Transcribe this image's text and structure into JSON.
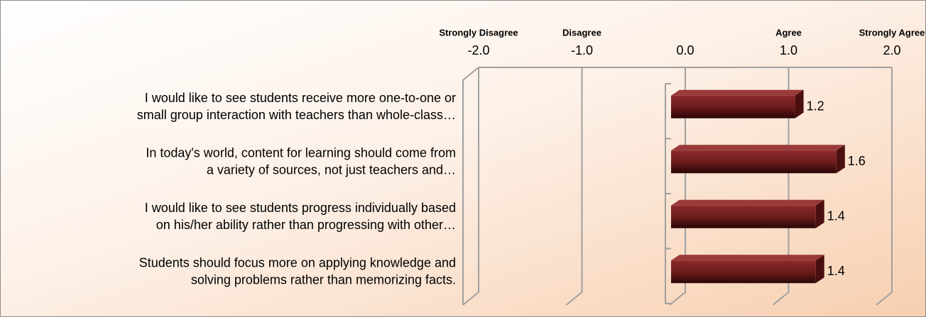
{
  "chart_data": {
    "type": "bar",
    "orientation": "horizontal",
    "categories": [
      "I would like to see students receive more one-to-one or\nsmall group interaction with teachers than whole-class…",
      "In today's world, content for learning should come from\na variety of sources, not just teachers and…",
      "I would like to see students progress individually based\non his/her ability rather than progressing with other…",
      "Students should focus more on applying knowledge and\nsolving problems rather than memorizing facts."
    ],
    "values": [
      1.2,
      1.6,
      1.4,
      1.4
    ],
    "color": "#6e1c1c",
    "xlim": [
      -2,
      2
    ],
    "xticks": [
      {
        "value": -2,
        "label": "-2.0"
      },
      {
        "value": -1,
        "label": "-1.0"
      },
      {
        "value": 0,
        "label": "0.0"
      },
      {
        "value": 1,
        "label": "1.0"
      },
      {
        "value": 2,
        "label": "2.0"
      }
    ],
    "grid": true,
    "annotations": [
      {
        "x": -2,
        "text": "Strongly Disagree"
      },
      {
        "x": -1,
        "text": "Disagree"
      },
      {
        "x": 1,
        "text": "Agree"
      },
      {
        "x": 2,
        "text": "Strongly Agree"
      }
    ]
  }
}
